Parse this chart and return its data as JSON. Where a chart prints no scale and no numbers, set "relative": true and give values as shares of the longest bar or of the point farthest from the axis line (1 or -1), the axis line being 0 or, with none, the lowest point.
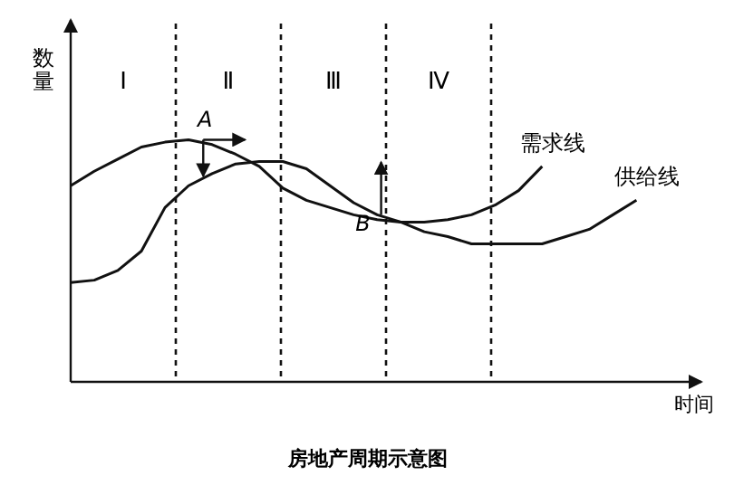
{
  "chart_data": {
    "type": "line",
    "title": "房地产周期示意图",
    "xlabel": "时间",
    "ylabel": "数量",
    "relative": true,
    "marker": "none",
    "line_style": "solid",
    "categories": [
      null,
      null,
      null,
      null,
      null,
      null,
      null,
      null,
      null,
      null,
      null,
      null,
      null,
      null,
      null,
      null,
      null,
      null,
      null,
      null,
      null,
      null,
      null,
      null,
      null
    ],
    "series": [
      {
        "name": "需求线",
        "color": "#111111",
        "values": [
          0.81,
          0.87,
          0.92,
          0.97,
          0.99,
          1.0,
          0.98,
          0.94,
          0.89,
          0.8,
          0.75,
          0.72,
          0.69,
          0.67,
          0.66,
          0.66,
          0.67,
          0.69,
          0.73,
          0.79,
          0.89,
          null,
          null,
          null,
          null
        ]
      },
      {
        "name": "供给线",
        "color": "#111111",
        "values": [
          0.41,
          0.42,
          0.46,
          0.54,
          0.72,
          0.81,
          0.86,
          0.9,
          0.91,
          0.91,
          0.88,
          0.81,
          0.74,
          0.69,
          0.66,
          0.62,
          0.6,
          0.57,
          0.57,
          0.57,
          0.57,
          0.6,
          0.63,
          0.69,
          0.75
        ]
      }
    ],
    "annotations": [
      "Ⅰ",
      "Ⅱ",
      "Ⅲ",
      "Ⅳ",
      "A",
      "B"
    ]
  }
}
